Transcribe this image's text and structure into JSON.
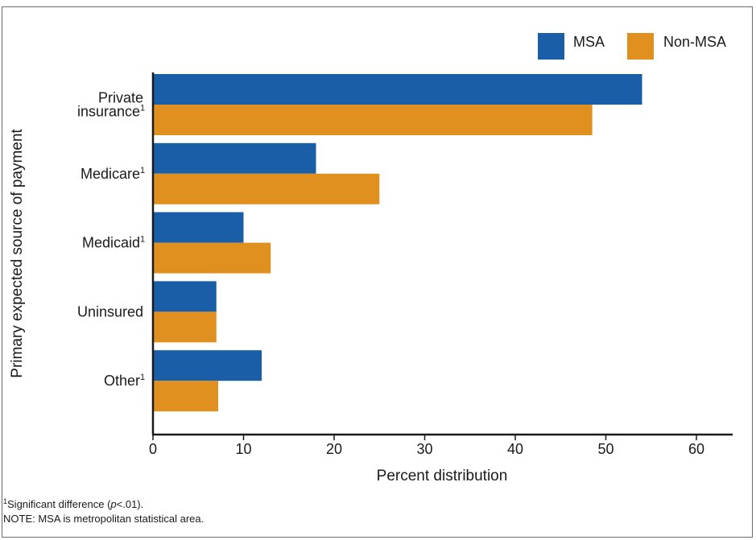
{
  "chart_data": {
    "type": "bar",
    "orientation": "horizontal",
    "categories": [
      {
        "lines": [
          "Private",
          "insurance"
        ],
        "marker": "1"
      },
      {
        "lines": [
          "Medicare"
        ],
        "marker": "1"
      },
      {
        "lines": [
          "Medicaid"
        ],
        "marker": "1"
      },
      {
        "lines": [
          "Uninsured"
        ],
        "marker": ""
      },
      {
        "lines": [
          "Other"
        ],
        "marker": "1"
      }
    ],
    "series": [
      {
        "name": "MSA",
        "color": "#1b5ea8",
        "values": [
          54,
          18,
          10,
          7,
          12
        ]
      },
      {
        "name": "Non-MSA",
        "color": "#e0901e",
        "values": [
          48.5,
          25,
          13,
          7,
          7.2
        ]
      }
    ],
    "xlabel": "Percent distribution",
    "ylabel": "Primary expected source of payment",
    "xlim": [
      0,
      64
    ],
    "xticks": [
      "0",
      "10",
      "20",
      "30",
      "40",
      "50",
      "60"
    ],
    "grid": false,
    "legend_position": "top-right"
  },
  "footnotes": {
    "marker": "1",
    "significance_prefix": "Significant difference (",
    "significance_p": "p",
    "significance_suffix": "<.01).",
    "note": "NOTE: MSA is metropolitan statistical area."
  }
}
